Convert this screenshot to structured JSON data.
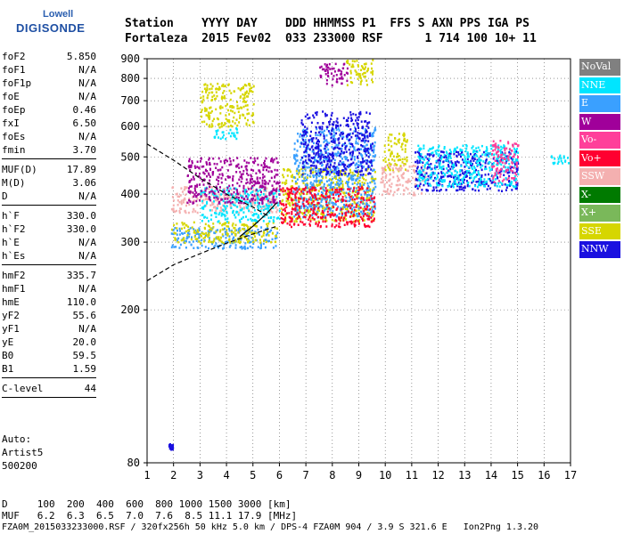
{
  "logo": {
    "line1": "Lowell",
    "line2": "DIGISONDE"
  },
  "header": {
    "labels": [
      "Station",
      "YYYY",
      "DAY",
      "DDD",
      "HHMMSS",
      "P1",
      "FFS",
      "S",
      "AXN",
      "PPS",
      "IGA",
      "PS"
    ],
    "values": [
      "Fortaleza",
      "2015",
      "Fev02",
      "033",
      "233000",
      "RSF",
      "1",
      "714",
      "100",
      "10+",
      "11"
    ],
    "line1": "Station    YYYY DAY    DDD HHMMSS P1  FFS S AXN PPS IGA PS",
    "line2": "Fortaleza  2015 Fev02  033 233000 RSF      1 714 100 10+ 11"
  },
  "params": {
    "group1": [
      {
        "k": "foF2",
        "v": "5.850"
      },
      {
        "k": "foF1",
        "v": "N/A"
      },
      {
        "k": "foF1p",
        "v": "N/A"
      },
      {
        "k": "foE",
        "v": "N/A"
      },
      {
        "k": "foEp",
        "v": "0.46"
      },
      {
        "k": "fxI",
        "v": "6.50"
      },
      {
        "k": "foEs",
        "v": "N/A"
      },
      {
        "k": "fmin",
        "v": "3.70"
      }
    ],
    "group2": [
      {
        "k": "MUF(D)",
        "v": "17.89"
      },
      {
        "k": "M(D)",
        "v": "3.06"
      },
      {
        "k": "D",
        "v": "N/A"
      }
    ],
    "group3": [
      {
        "k": "h`F",
        "v": "330.0"
      },
      {
        "k": "h`F2",
        "v": "330.0"
      },
      {
        "k": "h`E",
        "v": "N/A"
      },
      {
        "k": "h`Es",
        "v": "N/A"
      }
    ],
    "group4": [
      {
        "k": "hmF2",
        "v": "335.7"
      },
      {
        "k": "hmF1",
        "v": "N/A"
      },
      {
        "k": "hmE",
        "v": "110.0"
      },
      {
        "k": "yF2",
        "v": "55.6"
      },
      {
        "k": "yF1",
        "v": "N/A"
      },
      {
        "k": "yE",
        "v": "20.0"
      },
      {
        "k": "B0",
        "v": "59.5"
      },
      {
        "k": "B1",
        "v": "1.59"
      }
    ],
    "group5": [
      {
        "k": "C-level",
        "v": "44"
      }
    ]
  },
  "auto": {
    "line1": "Auto:",
    "line2": "Artist5",
    "line3": "500200"
  },
  "legend": [
    {
      "label": "NoVal",
      "color": "#808080"
    },
    {
      "label": "NNE",
      "color": "#00e5ff"
    },
    {
      "label": "E",
      "color": "#3aa0ff"
    },
    {
      "label": "W",
      "color": "#a0009a"
    },
    {
      "label": "Vo-",
      "color": "#ff3f9a"
    },
    {
      "label": "Vo+",
      "color": "#ff0030"
    },
    {
      "label": "SSW",
      "color": "#f4b0b0"
    },
    {
      "label": "X-",
      "color": "#007a00"
    },
    {
      "label": "X+",
      "color": "#7ab85a"
    },
    {
      "label": "SSE",
      "color": "#d6d600"
    },
    {
      "label": "NNW",
      "color": "#1a10e0"
    }
  ],
  "footer": {
    "d_line": "D     100  200  400  600  800 1000 1500 3000 [km]",
    "muf_line": "MUF   6.2  6.3  6.5  7.0  7.6  8.5 11.1 17.9 [MHz]",
    "info_line": "FZA0M_2015033233000.RSF / 320fx256h 50 kHz 5.0 km / DPS-4 FZA0M 904 / 3.9 S 321.6 E   Ion2Png 1.3.20"
  },
  "chart_data": {
    "type": "scatter",
    "x_ticks": [
      1,
      2,
      3,
      4,
      5,
      6,
      7,
      8,
      9,
      10,
      11,
      12,
      13,
      14,
      15,
      16,
      17
    ],
    "y_ticks": [
      80,
      200,
      300,
      400,
      500,
      600,
      700,
      800,
      900
    ],
    "xlim": [
      1,
      17
    ],
    "ylim": [
      80,
      900
    ],
    "y_scale": "log",
    "grid": true,
    "grid_style": "dotted",
    "clusters": [
      {
        "series": "E",
        "x": [
          1.9,
          5.9
        ],
        "y": [
          290,
          330
        ]
      },
      {
        "series": "SSE",
        "x": [
          1.9,
          5.9
        ],
        "y": [
          300,
          340
        ]
      },
      {
        "series": "SSW",
        "x": [
          1.9,
          5.9
        ],
        "y": [
          360,
          420
        ]
      },
      {
        "series": "NNE",
        "x": [
          3.0,
          6.0
        ],
        "y": [
          340,
          420
        ]
      },
      {
        "series": "W",
        "x": [
          2.5,
          6.0
        ],
        "y": [
          380,
          500
        ]
      },
      {
        "series": "SSE",
        "x": [
          3.0,
          5.0
        ],
        "y": [
          600,
          780
        ]
      },
      {
        "series": "NNE",
        "x": [
          3.5,
          4.5
        ],
        "y": [
          560,
          600
        ]
      },
      {
        "series": "SSE",
        "x": [
          6.0,
          9.6
        ],
        "y": [
          340,
          470
        ]
      },
      {
        "series": "E",
        "x": [
          6.5,
          9.6
        ],
        "y": [
          350,
          600
        ]
      },
      {
        "series": "Vo+",
        "x": [
          6.0,
          9.6
        ],
        "y": [
          330,
          420
        ]
      },
      {
        "series": "NNW",
        "x": [
          6.8,
          9.5
        ],
        "y": [
          450,
          660
        ]
      },
      {
        "series": "SSE",
        "x": [
          8.5,
          9.5
        ],
        "y": [
          770,
          900
        ]
      },
      {
        "series": "W",
        "x": [
          7.5,
          8.6
        ],
        "y": [
          770,
          880
        ]
      },
      {
        "series": "SSE",
        "x": [
          9.9,
          10.8
        ],
        "y": [
          460,
          580
        ]
      },
      {
        "series": "SSW",
        "x": [
          9.8,
          11.5
        ],
        "y": [
          400,
          480
        ]
      },
      {
        "series": "NNW",
        "x": [
          11.1,
          15.0
        ],
        "y": [
          410,
          520
        ]
      },
      {
        "series": "NNE",
        "x": [
          11.2,
          15.0
        ],
        "y": [
          420,
          540
        ]
      },
      {
        "series": "Vo-",
        "x": [
          14.0,
          15.0
        ],
        "y": [
          430,
          560
        ]
      },
      {
        "series": "NNE",
        "x": [
          16.2,
          16.9
        ],
        "y": [
          480,
          510
        ]
      },
      {
        "series": "NNW",
        "x": [
          1.8,
          1.95
        ],
        "y": [
          87,
          90
        ]
      }
    ],
    "lines": [
      {
        "style": "dashed",
        "points": [
          [
            1.0,
            540
          ],
          [
            2.0,
            490
          ],
          [
            3.0,
            440
          ],
          [
            4.0,
            400
          ],
          [
            5.0,
            370
          ],
          [
            5.6,
            350
          ]
        ]
      },
      {
        "style": "dashed",
        "points": [
          [
            1.0,
            238
          ],
          [
            2.0,
            262
          ],
          [
            3.0,
            280
          ],
          [
            4.0,
            298
          ],
          [
            5.0,
            315
          ],
          [
            5.9,
            330
          ]
        ]
      },
      {
        "style": "solid",
        "points": [
          [
            4.5,
            310
          ],
          [
            5.0,
            330
          ],
          [
            5.5,
            355
          ],
          [
            5.9,
            380
          ]
        ]
      }
    ]
  }
}
